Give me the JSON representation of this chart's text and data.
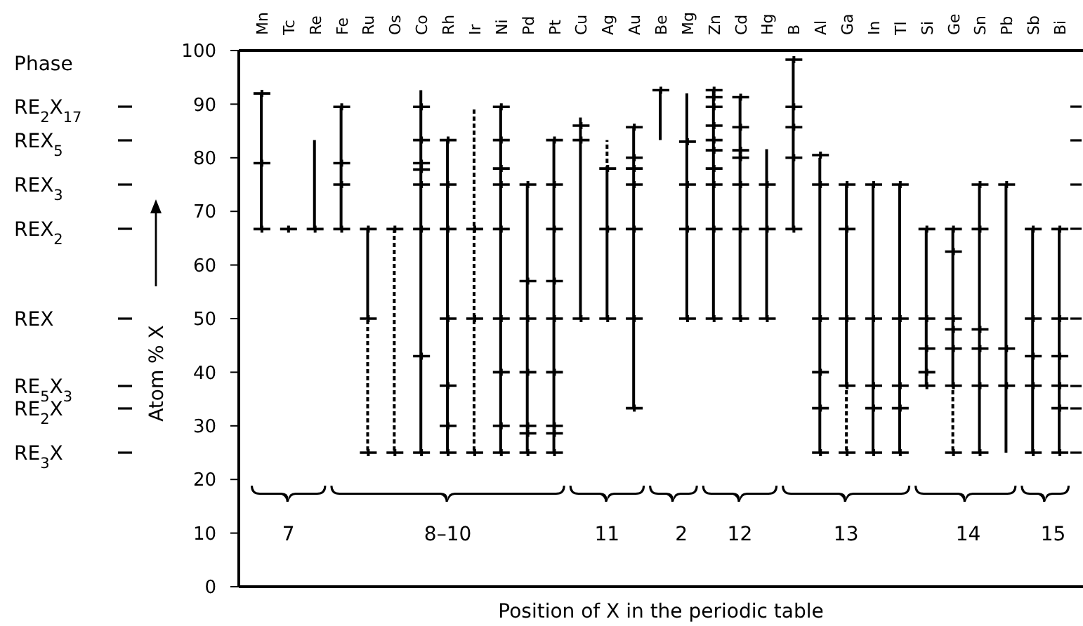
{
  "chart_data": {
    "type": "bar",
    "categories": [
      "Mn",
      "Tc",
      "Re",
      "Fe",
      "Ru",
      "Os",
      "Co",
      "Rh",
      "Ir",
      "Ni",
      "Pd",
      "Pt",
      "Cu",
      "Ag",
      "Au",
      "Be",
      "Mg",
      "Zn",
      "Cd",
      "Hg",
      "B",
      "Al",
      "Ga",
      "In",
      "Tl",
      "Si",
      "Ge",
      "Sn",
      "Pb",
      "Sb",
      "Bi"
    ],
    "xlabel": "Position of X in the periodic table",
    "ylabel": "Atom % X",
    "ylim": [
      0,
      100
    ],
    "yticks": [
      0,
      10,
      20,
      30,
      40,
      50,
      60,
      70,
      80,
      90,
      100
    ],
    "annotations": [
      "Phase",
      "RE$_{2}$X$_{17}$",
      "REX$_{5}$",
      "REX$_{3}$",
      "REX$_{2}$",
      "REX",
      "RE$_{5}$X$_{3}$",
      "RE$_{2}$X",
      "RE$_{3}$X",
      "7",
      "8–10",
      "11",
      "2",
      "12",
      "13",
      "14",
      "15"
    ],
    "series": [
      {
        "color": "#000000",
        "line_style": "solid",
        "base": [
          66.7,
          null,
          66.7,
          66.7,
          50,
          null,
          25,
          25,
          null,
          25,
          25,
          25,
          50,
          50,
          33.3,
          83.3,
          50,
          50,
          50,
          50,
          66.7,
          25,
          37.5,
          25,
          25,
          37.5,
          37.5,
          25,
          25,
          25,
          25
        ],
        "values": [
          25.3,
          null,
          16.6,
          22.8,
          16.7,
          null,
          67.6,
          58.3,
          null,
          64.5,
          50,
          58.3,
          37.5,
          28,
          52.4,
          9.3,
          42,
          42.6,
          41.3,
          31.6,
          31.6,
          55,
          37.5,
          50,
          50,
          29.2,
          29.2,
          50,
          50,
          41.7,
          41.7
        ]
      },
      {
        "color": "#000000",
        "line_style": "dashed",
        "base": [
          null,
          null,
          null,
          null,
          25,
          25,
          null,
          null,
          25,
          null,
          null,
          null,
          null,
          78,
          null,
          null,
          null,
          null,
          null,
          null,
          null,
          null,
          25,
          null,
          null,
          null,
          25,
          null,
          null,
          null,
          null
        ],
        "values": [
          null,
          null,
          null,
          null,
          25,
          41.7,
          null,
          null,
          64.5,
          null,
          null,
          null,
          null,
          5.3,
          null,
          null,
          null,
          null,
          null,
          null,
          null,
          null,
          12.5,
          null,
          null,
          null,
          12.5,
          null,
          null,
          null,
          null
        ]
      },
      {
        "type": "scatter",
        "color": "#000000",
        "marker": "cross",
        "x": [
          "Mn",
          "Mn",
          "Mn",
          "Tc",
          "Re",
          "Fe",
          "Fe",
          "Fe",
          "Fe",
          "Ru",
          "Ru",
          "Ru",
          "Os",
          "Os",
          "Co",
          "Co",
          "Co",
          "Co",
          "Co",
          "Co",
          "Co",
          "Co",
          "Rh",
          "Rh",
          "Rh",
          "Rh",
          "Rh",
          "Rh",
          "Rh",
          "Ir",
          "Ir",
          "Ir",
          "Ni",
          "Ni",
          "Ni",
          "Ni",
          "Ni",
          "Ni",
          "Ni",
          "Ni",
          "Ni",
          "Pd",
          "Pd",
          "Pd",
          "Pd",
          "Pd",
          "Pd",
          "Pd",
          "Pt",
          "Pt",
          "Pt",
          "Pt",
          "Pt",
          "Pt",
          "Pt",
          "Pt",
          "Pt",
          "Cu",
          "Cu",
          "Cu",
          "Ag",
          "Ag",
          "Ag",
          "Au",
          "Au",
          "Au",
          "Au",
          "Au",
          "Au",
          "Au",
          "Be",
          "Mg",
          "Mg",
          "Mg",
          "Mg",
          "Zn",
          "Zn",
          "Zn",
          "Zn",
          "Zn",
          "Zn",
          "Zn",
          "Zn",
          "Zn",
          "Zn",
          "Cd",
          "Cd",
          "Cd",
          "Cd",
          "Cd",
          "Cd",
          "Cd",
          "Hg",
          "Hg",
          "Hg",
          "B",
          "B",
          "B",
          "B",
          "B",
          "Al",
          "Al",
          "Al",
          "Al",
          "Al",
          "Al",
          "Ga",
          "Ga",
          "Ga",
          "Ga",
          "Ga",
          "In",
          "In",
          "In",
          "In",
          "In",
          "Tl",
          "Tl",
          "Tl",
          "Tl",
          "Tl",
          "Si",
          "Si",
          "Si",
          "Si",
          "Si",
          "Ge",
          "Ge",
          "Ge",
          "Ge",
          "Ge",
          "Ge",
          "Ge",
          "Sn",
          "Sn",
          "Sn",
          "Sn",
          "Sn",
          "Sn",
          "Pb",
          "Pb",
          "Pb",
          "Sb",
          "Sb",
          "Sb",
          "Sb",
          "Sb",
          "Bi",
          "Bi",
          "Bi",
          "Bi",
          "Bi",
          "Bi"
        ],
        "values": [
          92,
          79,
          66.7,
          66.7,
          66.7,
          89.5,
          79,
          75,
          66.7,
          66.7,
          50,
          25,
          66.7,
          25,
          89.5,
          83.3,
          79,
          77.8,
          75,
          66.7,
          43,
          25,
          83.3,
          75,
          66.7,
          50,
          37.5,
          30,
          25,
          66.7,
          50,
          25,
          89.5,
          83.3,
          78,
          75,
          66.7,
          50,
          40,
          30,
          25,
          75,
          57,
          50,
          40,
          30,
          28.6,
          25,
          83.3,
          75,
          66.7,
          57,
          50,
          40,
          30,
          28.6,
          25,
          86,
          83.3,
          50,
          78,
          66.7,
          50,
          85.7,
          80,
          78,
          75,
          66.7,
          50,
          33.3,
          92.6,
          83,
          75,
          66.7,
          50,
          92.6,
          91.3,
          89.5,
          86,
          83.3,
          81.4,
          78,
          75,
          66.7,
          50,
          91.3,
          85.7,
          81.4,
          80,
          75,
          66.7,
          50,
          75,
          66.7,
          50,
          98.3,
          89.5,
          85.7,
          80,
          66.7,
          80.5,
          75,
          50,
          40,
          33.3,
          25,
          75,
          66.7,
          50,
          37.5,
          25,
          75,
          50,
          37.5,
          33.3,
          25,
          75,
          50,
          37.5,
          33.3,
          25,
          66.7,
          50,
          44.4,
          40,
          37.5,
          66.7,
          62.5,
          50,
          48,
          44.4,
          37.5,
          25,
          75,
          66.7,
          48,
          44.4,
          37.5,
          25,
          75,
          44.4,
          37.5,
          66.7,
          50,
          43,
          37.5,
          25,
          66.7,
          50,
          43,
          37.5,
          33.3,
          25
        ]
      }
    ]
  }
}
